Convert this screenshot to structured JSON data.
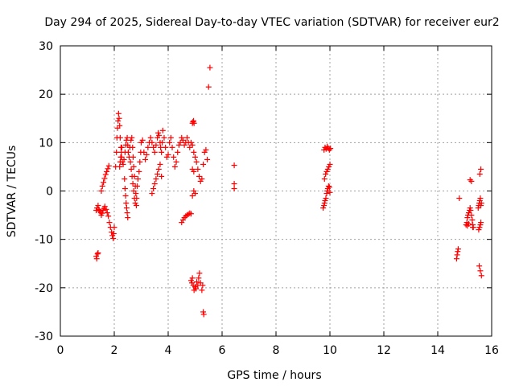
{
  "chart_data": {
    "type": "scatter",
    "title": "Day 294 of 2025, Sidereal Day-to-day VTEC variation (SDTVAR) for receiver eur2",
    "xlabel": "GPS time / hours",
    "ylabel": "SDTVAR / TECUs",
    "xlim": [
      0,
      16
    ],
    "ylim": [
      -30,
      30
    ],
    "xticks": [
      "0",
      "2",
      "4",
      "6",
      "8",
      "10",
      "12",
      "14",
      "16"
    ],
    "yticks": [
      "-30",
      "-20",
      "-10",
      "0",
      "10",
      "20",
      "30"
    ],
    "grid": true,
    "marker": "+",
    "color": "#ff0000",
    "series": [
      {
        "name": "SDTVAR",
        "x": [
          1.33,
          1.35,
          1.38,
          1.4,
          1.33,
          1.36,
          1.4,
          1.43,
          1.46,
          1.5,
          1.52,
          1.55,
          1.58,
          1.62,
          1.65,
          1.7,
          1.74,
          1.78,
          1.82,
          1.86,
          1.9,
          1.93,
          1.96,
          1.98,
          2.0,
          1.52,
          1.56,
          1.6,
          1.64,
          1.68,
          1.72,
          1.76,
          1.8,
          2.05,
          2.08,
          2.1,
          2.12,
          2.14,
          2.16,
          2.18,
          2.2,
          2.22,
          2.25,
          2.27,
          2.3,
          2.33,
          2.36,
          2.4,
          2.43,
          2.45,
          2.48,
          2.5,
          2.52,
          2.55,
          2.58,
          2.62,
          2.65,
          2.68,
          2.7,
          2.72,
          2.75,
          2.78,
          2.8,
          2.83,
          2.85,
          2.88,
          2.92,
          2.95,
          2.98,
          3.0,
          3.05,
          3.1,
          3.15,
          3.2,
          3.25,
          3.3,
          3.35,
          3.4,
          3.45,
          3.5,
          3.55,
          3.6,
          3.63,
          3.66,
          3.7,
          3.72,
          3.75,
          3.78,
          3.8,
          3.85,
          3.9,
          3.95,
          3.4,
          3.45,
          3.5,
          3.55,
          3.6,
          3.65,
          3.7,
          3.75,
          2.38,
          2.4,
          2.42,
          2.44,
          2.46,
          2.48,
          2.5,
          2.6,
          2.63,
          2.66,
          2.69,
          2.72,
          2.75,
          2.78,
          2.82,
          2.2,
          2.22,
          2.24,
          2.26,
          2.28,
          4.0,
          4.05,
          4.1,
          4.15,
          4.2,
          4.25,
          4.3,
          4.35,
          4.4,
          4.45,
          4.5,
          4.55,
          4.6,
          4.65,
          4.7,
          4.75,
          4.8,
          4.85,
          4.9,
          4.95,
          5.0,
          5.05,
          5.1,
          5.15,
          5.2,
          5.25,
          5.3,
          5.35,
          5.4,
          5.45,
          4.5,
          4.55,
          4.6,
          4.65,
          4.7,
          4.75,
          4.8,
          4.85,
          4.9,
          4.95,
          4.9,
          4.92,
          4.94,
          4.96,
          4.85,
          4.88,
          4.9,
          4.93,
          4.96,
          5.0,
          5.03,
          5.06,
          5.1,
          5.13,
          5.16,
          5.2,
          5.25,
          5.28,
          4.9,
          4.95,
          5.0,
          5.3,
          5.32,
          5.5,
          5.55,
          6.45,
          6.45,
          6.45,
          9.75,
          9.78,
          9.8,
          9.82,
          9.85,
          9.88,
          9.9,
          9.92,
          9.95,
          9.98,
          10.0,
          9.78,
          9.82,
          9.86,
          9.9,
          9.94,
          9.98,
          10.02,
          9.8,
          9.84,
          9.88,
          9.92,
          9.96,
          10.0,
          14.7,
          14.72,
          14.74,
          14.76,
          14.8,
          15.05,
          15.08,
          15.1,
          15.12,
          15.15,
          15.18,
          15.2,
          15.22,
          15.25,
          15.28,
          15.3,
          15.32,
          15.1,
          15.15,
          15.2,
          15.25,
          15.3,
          15.5,
          15.52,
          15.54,
          15.56,
          15.58,
          15.6,
          15.62,
          15.52,
          15.55,
          15.58,
          15.6,
          15.54,
          15.58,
          15.62,
          15.56,
          15.6
        ],
        "y": [
          -13.5,
          -14.0,
          -13.0,
          -12.8,
          -4.0,
          -3.5,
          -3.0,
          -3.8,
          -4.2,
          -4.5,
          -5.0,
          -4.6,
          -4.0,
          -3.6,
          -3.2,
          -3.8,
          -4.5,
          -5.2,
          -6.5,
          -7.5,
          -8.5,
          -9.2,
          -9.8,
          -8.8,
          -7.5,
          0.0,
          1.0,
          1.8,
          2.6,
          3.4,
          4.0,
          4.6,
          5.2,
          5.0,
          8.0,
          11.0,
          13.0,
          14.5,
          16.0,
          15.0,
          13.5,
          11.0,
          9.0,
          7.0,
          6.0,
          5.5,
          6.5,
          8.0,
          9.5,
          10.5,
          11.0,
          9.5,
          8.0,
          7.0,
          9.0,
          10.5,
          11.0,
          9.0,
          7.0,
          5.0,
          3.0,
          1.0,
          -0.5,
          -1.5,
          1.0,
          2.5,
          4.0,
          6.0,
          8.0,
          10.0,
          10.5,
          8.0,
          6.5,
          7.5,
          9.0,
          10.0,
          11.0,
          10.0,
          9.0,
          8.0,
          9.5,
          11.0,
          12.0,
          11.5,
          10.0,
          9.0,
          8.0,
          10.0,
          12.5,
          11.0,
          9.0,
          7.0,
          -0.5,
          0.5,
          1.5,
          2.5,
          3.5,
          4.5,
          5.5,
          3.0,
          2.5,
          0.5,
          -1.0,
          -2.5,
          -3.5,
          -4.5,
          -5.5,
          6.0,
          4.5,
          3.0,
          1.5,
          0.0,
          -1.5,
          -2.5,
          -3.0,
          5.0,
          6.0,
          7.0,
          8.0,
          9.0,
          7.5,
          10.0,
          11.0,
          9.0,
          7.0,
          5.0,
          6.0,
          8.0,
          9.5,
          10.0,
          11.0,
          10.5,
          9.5,
          10.0,
          11.0,
          10.0,
          9.0,
          10.0,
          9.5,
          8.0,
          7.0,
          6.0,
          4.5,
          3.0,
          2.0,
          2.5,
          5.5,
          8.0,
          8.5,
          6.5,
          -6.5,
          -6.0,
          -5.5,
          -5.2,
          -5.0,
          -4.8,
          -4.6,
          -4.7,
          4.5,
          4.0,
          14.0,
          14.3,
          14.5,
          14.0,
          -18.5,
          -19.0,
          -18.0,
          -19.5,
          -20.5,
          -19.8,
          -20.2,
          -18.8,
          -19.5,
          -18.0,
          -17.0,
          -19.0,
          -20.5,
          -19.5,
          -1.0,
          0.0,
          -0.5,
          -25.0,
          -25.5,
          21.5,
          25.5,
          5.3,
          1.5,
          0.5,
          -3.5,
          -3.0,
          -2.5,
          -2.0,
          -1.5,
          -0.5,
          0.0,
          0.5,
          1.0,
          0.8,
          -0.3,
          8.5,
          9.0,
          8.7,
          9.2,
          8.8,
          8.5,
          8.8,
          2.5,
          3.5,
          4.0,
          4.5,
          5.0,
          5.5,
          -14.0,
          -13.2,
          -12.5,
          -12.0,
          -1.5,
          -7.0,
          -6.5,
          -5.5,
          -5.0,
          -4.5,
          -4.0,
          -3.5,
          -4.0,
          -5.0,
          -6.0,
          -7.0,
          -7.5,
          -7.2,
          -6.8,
          2.3,
          2.0,
          -7.5,
          -3.5,
          -3.0,
          -2.5,
          -2.0,
          -1.5,
          -3.0,
          -2.5,
          -8.0,
          -7.5,
          -7.0,
          -6.5,
          -15.5,
          -16.5,
          -17.5,
          3.5,
          4.5
        ]
      }
    ]
  }
}
